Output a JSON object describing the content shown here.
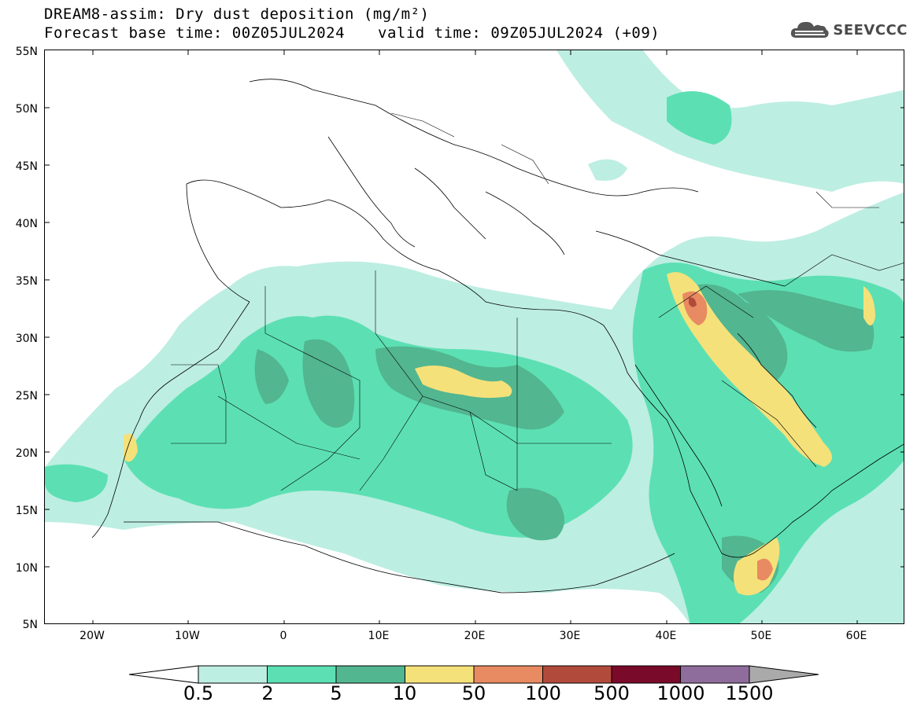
{
  "header": {
    "title_line1": "DREAM8-assim: Dry dust deposition (mg/m²)",
    "base_time": "Forecast base time: 00Z05JUL2024",
    "valid_time": "valid time: 09Z05JUL2024 (+09)"
  },
  "logo": {
    "text": "SEEVCCC",
    "icon": "cloud-icon"
  },
  "axes": {
    "lat_labels": [
      "55N",
      "50N",
      "45N",
      "40N",
      "35N",
      "30N",
      "25N",
      "20N",
      "15N",
      "10N",
      "5N"
    ],
    "lon_labels": [
      "20W",
      "10W",
      "0",
      "10E",
      "20E",
      "30E",
      "40E",
      "50E",
      "60E"
    ],
    "lat_range": [
      5,
      55
    ],
    "lon_range": [
      -25,
      65
    ]
  },
  "legend": {
    "labels": [
      "0.5",
      "2",
      "5",
      "10",
      "50",
      "100",
      "500",
      "1000",
      "1500"
    ],
    "colors": [
      "#ffffff",
      "#bdeee2",
      "#5ce0b3",
      "#52b690",
      "#f5e17a",
      "#e88a62",
      "#b24a3c",
      "#7a0a2a",
      "#8e6c9b",
      "#aaaaaa"
    ]
  },
  "map": {
    "land_fill": "#ffffff",
    "border_color": "#000000"
  }
}
